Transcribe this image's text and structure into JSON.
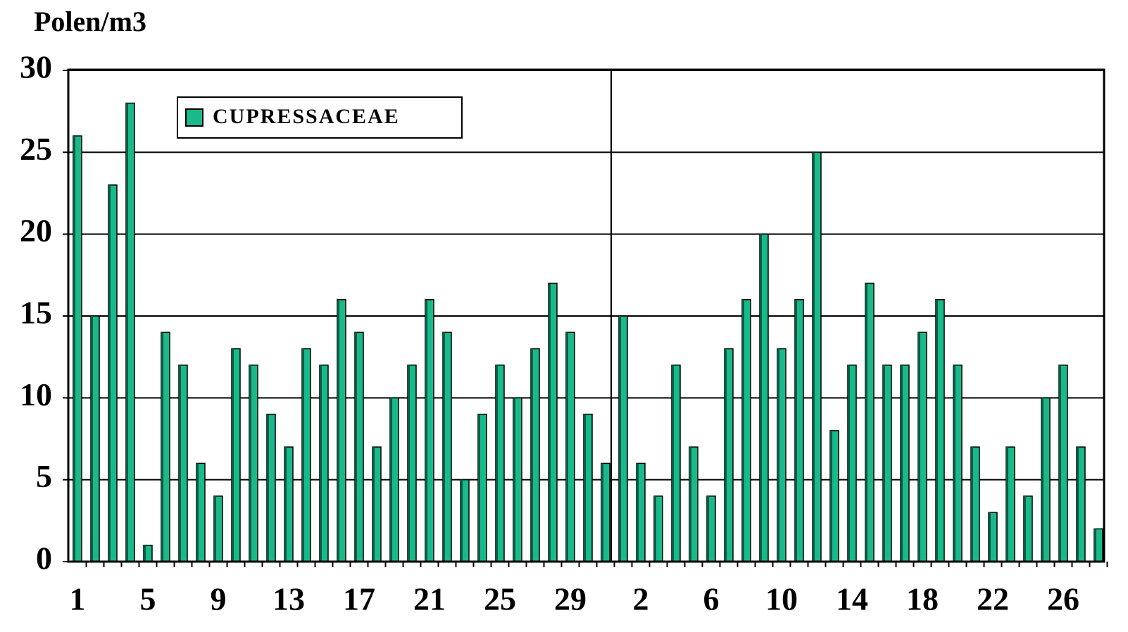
{
  "chart_data": {
    "type": "bar",
    "y_label": "Polen/m3",
    "categories": [
      "1",
      null,
      null,
      null,
      "5",
      null,
      null,
      null,
      "9",
      null,
      null,
      null,
      "13",
      null,
      null,
      null,
      "17",
      null,
      null,
      null,
      "21",
      null,
      null,
      null,
      "25",
      null,
      null,
      null,
      "29",
      null,
      null,
      null,
      "2",
      null,
      null,
      null,
      "6",
      null,
      null,
      null,
      "10",
      null,
      null,
      null,
      "14",
      null,
      null,
      null,
      "18",
      null,
      null,
      null,
      "22",
      null,
      null,
      null,
      "26",
      null,
      null
    ],
    "series": [
      {
        "name": "CUPRESSACEAE",
        "color": "#19b98a",
        "values": [
          26,
          15,
          23,
          28,
          1,
          14,
          12,
          6,
          4,
          13,
          12,
          9,
          7,
          13,
          12,
          16,
          14,
          7,
          10,
          12,
          16,
          14,
          5,
          9,
          12,
          10,
          13,
          17,
          14,
          9,
          6,
          15,
          6,
          4,
          12,
          7,
          4,
          13,
          16,
          20,
          13,
          16,
          25,
          8,
          12,
          17,
          12,
          12,
          14,
          16,
          12,
          7,
          3,
          7,
          4,
          10,
          12,
          7,
          2
        ]
      }
    ],
    "ylim": [
      0,
      30
    ],
    "yticks": [
      0,
      5,
      10,
      15,
      20,
      25,
      30
    ],
    "grid": true
  }
}
